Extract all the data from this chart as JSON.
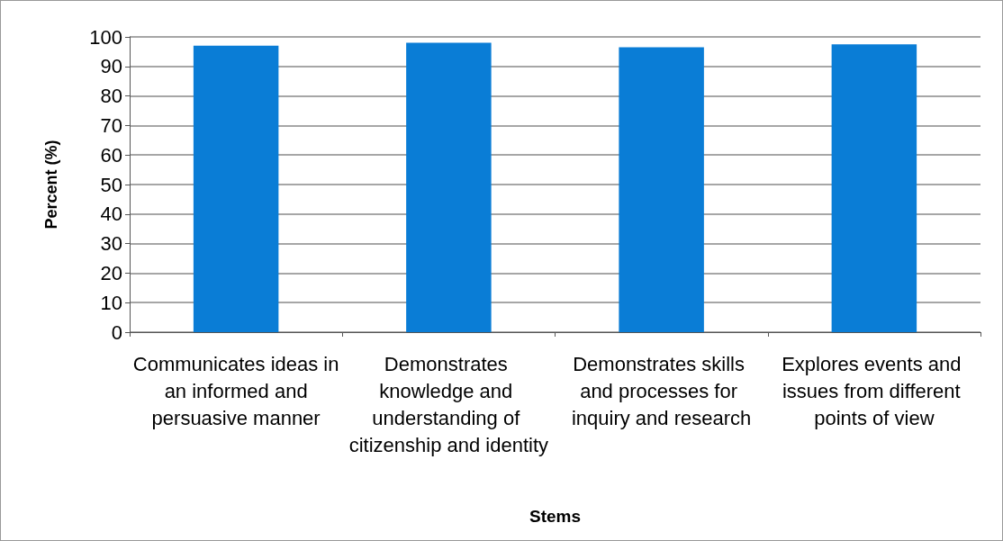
{
  "chart_data": {
    "type": "bar",
    "xlabel": "Stems",
    "ylabel": "Percent (%)",
    "categories": [
      "Communicates ideas in an informed and persuasive manner",
      "Demonstrates knowledge and understanding of citizenship and identity",
      "Demonstrates skills and processes for inquiry and research",
      "Explores events and issues from different points of view"
    ],
    "values": [
      97,
      98,
      96.5,
      97.5
    ],
    "color": "#0a7dd6",
    "ylim": [
      0,
      100
    ],
    "yticks": [
      0,
      10,
      20,
      30,
      40,
      50,
      60,
      70,
      80,
      90,
      100
    ],
    "grid": "y"
  }
}
